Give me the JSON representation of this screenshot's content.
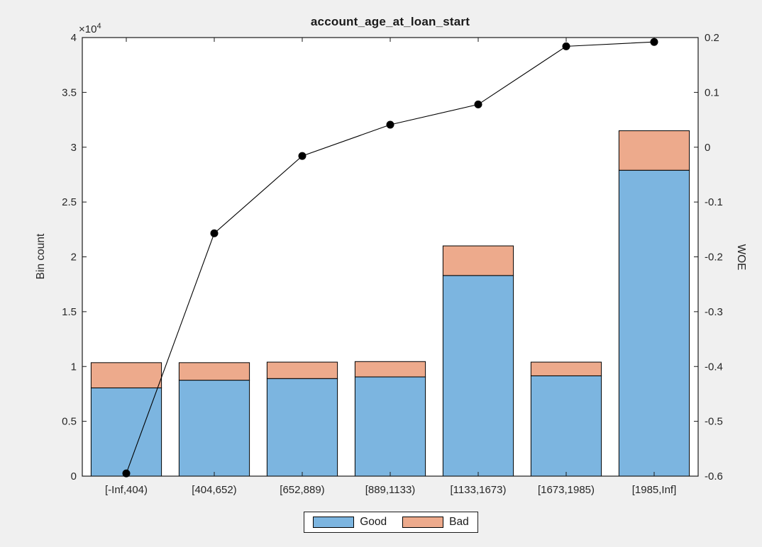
{
  "figure": {
    "background_color": "#f0f0f0",
    "plot_background_color": "#ffffff",
    "axes_color": "#1a1a1a",
    "tick_label_color": "#262626"
  },
  "chart_data": {
    "type": "bar",
    "subtype": "stacked-bar-with-line-overlay",
    "title": "account_age_at_loan_start",
    "ylabel": "Bin count",
    "y2label": "WOE",
    "grid": false,
    "categories": [
      "[-Inf,404)",
      "[404,652)",
      "[652,889)",
      "[889,1133)",
      "[1133,1673)",
      "[1673,1985)",
      "[1985,Inf]"
    ],
    "series": [
      {
        "name": "Good",
        "type": "bar",
        "stack": "counts",
        "axis": "left",
        "color": "#7cb5e0",
        "edge_color": "#000000",
        "values": [
          8050,
          8750,
          8900,
          9050,
          18300,
          9150,
          27900
        ]
      },
      {
        "name": "Bad",
        "type": "bar",
        "stack": "counts",
        "axis": "left",
        "color": "#edaa8c",
        "edge_color": "#000000",
        "values": [
          2300,
          1600,
          1500,
          1400,
          2700,
          1250,
          3600
        ]
      },
      {
        "name": "WOE",
        "type": "line",
        "axis": "right",
        "color": "#000000",
        "marker": "filled-circle",
        "values": [
          -0.595,
          -0.157,
          -0.016,
          0.041,
          0.078,
          0.184,
          0.192
        ]
      }
    ],
    "left_axis": {
      "range": [
        0,
        40000
      ],
      "exponent_base": "×10",
      "exponent_power": "4",
      "tick_values": [
        0,
        5000,
        10000,
        15000,
        20000,
        25000,
        30000,
        35000,
        40000
      ],
      "tick_labels": [
        "0",
        "0.5",
        "1",
        "1.5",
        "2",
        "2.5",
        "3",
        "3.5",
        "4"
      ]
    },
    "right_axis": {
      "range": [
        -0.6,
        0.2
      ],
      "tick_values": [
        -0.6,
        -0.5,
        -0.4,
        -0.3,
        -0.2,
        -0.1,
        0,
        0.1,
        0.2
      ],
      "tick_labels": [
        "-0.6",
        "-0.5",
        "-0.4",
        "-0.3",
        "-0.2",
        "-0.1",
        "0",
        "0.1",
        "0.2"
      ]
    },
    "legend": {
      "position": "bottom-outside",
      "entries": [
        "Good",
        "Bad"
      ]
    }
  }
}
